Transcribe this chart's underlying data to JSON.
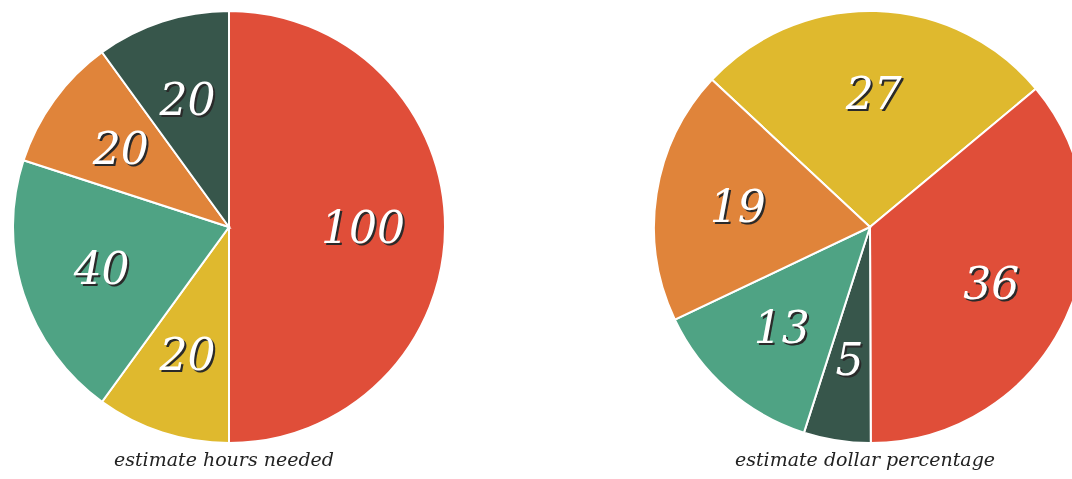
{
  "chart_data": [
    {
      "type": "pie",
      "xlabel": "estimate hours needed",
      "categories": [
        null,
        null,
        null,
        null,
        null
      ],
      "values": [
        100,
        20,
        40,
        20,
        20
      ],
      "colors": [
        "#e04e39",
        "#dfb92e",
        "#4fa384",
        "#e0843a",
        "#37564b"
      ],
      "data_labels": true
    },
    {
      "type": "pie",
      "xlabel": "estimate dollar percentage",
      "categories": [
        null,
        null,
        null,
        null,
        null
      ],
      "values": [
        27,
        36,
        5,
        13,
        19
      ],
      "colors": [
        "#dfb92e",
        "#e04e39",
        "#37564b",
        "#4fa384",
        "#e0843a"
      ],
      "data_labels": true
    }
  ]
}
